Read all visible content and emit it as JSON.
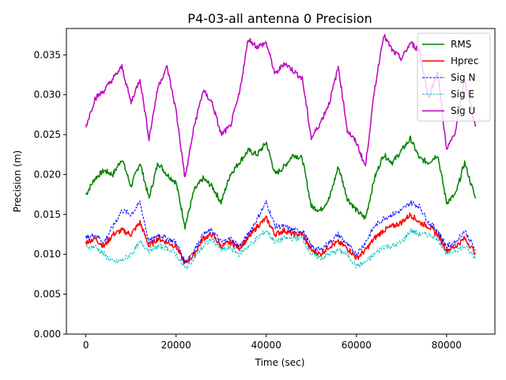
{
  "chart_data": {
    "type": "line",
    "title": "P4-03-all antenna 0 Precision",
    "xlabel": "Time (sec)",
    "ylabel": "Precision (m)",
    "xlim": [
      -4320,
      90720
    ],
    "ylim": [
      0.0,
      0.0383
    ],
    "xticks": [
      0,
      20000,
      40000,
      60000,
      80000
    ],
    "xtick_labels": [
      "0",
      "20000",
      "40000",
      "60000",
      "80000"
    ],
    "yticks": [
      0.0,
      0.005,
      0.01,
      0.015,
      0.02,
      0.025,
      0.03,
      0.035
    ],
    "ytick_labels": [
      "0.000",
      "0.005",
      "0.010",
      "0.015",
      "0.020",
      "0.025",
      "0.030",
      "0.035"
    ],
    "legend_position": "top-right",
    "grid": false,
    "x": [
      0,
      2000,
      4000,
      6000,
      8000,
      10000,
      12000,
      14000,
      16000,
      18000,
      20000,
      22000,
      24000,
      26000,
      28000,
      30000,
      32000,
      34000,
      36000,
      38000,
      40000,
      42000,
      44000,
      46000,
      48000,
      50000,
      52000,
      54000,
      56000,
      58000,
      60000,
      62000,
      64000,
      66000,
      68000,
      70000,
      72000,
      74000,
      76000,
      78000,
      80000,
      82000,
      84000,
      86400
    ],
    "series": [
      {
        "name": "RMS",
        "color": "#008000",
        "style": "solid",
        "width": 1.5,
        "values": [
          0.0175,
          0.0195,
          0.0205,
          0.02,
          0.022,
          0.0185,
          0.0215,
          0.017,
          0.0215,
          0.02,
          0.019,
          0.0135,
          0.018,
          0.0195,
          0.0185,
          0.0165,
          0.02,
          0.0215,
          0.023,
          0.0225,
          0.024,
          0.02,
          0.021,
          0.0225,
          0.022,
          0.016,
          0.0155,
          0.017,
          0.021,
          0.017,
          0.0155,
          0.0145,
          0.0195,
          0.0225,
          0.0215,
          0.023,
          0.0245,
          0.022,
          0.0215,
          0.0225,
          0.0165,
          0.0175,
          0.0215,
          0.017
        ]
      },
      {
        "name": "Hprec",
        "color": "#ff0000",
        "style": "solid",
        "width": 1.5,
        "values": [
          0.0115,
          0.012,
          0.011,
          0.0125,
          0.013,
          0.0125,
          0.014,
          0.011,
          0.012,
          0.0115,
          0.011,
          0.0088,
          0.01,
          0.012,
          0.0125,
          0.011,
          0.0115,
          0.0108,
          0.012,
          0.0135,
          0.0145,
          0.0125,
          0.013,
          0.0125,
          0.0125,
          0.0105,
          0.01,
          0.011,
          0.0115,
          0.0108,
          0.0095,
          0.0105,
          0.012,
          0.013,
          0.0135,
          0.014,
          0.015,
          0.014,
          0.0135,
          0.0125,
          0.0105,
          0.011,
          0.012,
          0.0102
        ]
      },
      {
        "name": "Sig N",
        "color": "#0000ff",
        "style": "dashed",
        "width": 1.0,
        "values": [
          0.012,
          0.0125,
          0.0115,
          0.0135,
          0.0155,
          0.015,
          0.0165,
          0.0115,
          0.0125,
          0.012,
          0.0115,
          0.009,
          0.0105,
          0.0125,
          0.013,
          0.0115,
          0.012,
          0.011,
          0.0125,
          0.0145,
          0.0165,
          0.0135,
          0.0135,
          0.013,
          0.013,
          0.011,
          0.0105,
          0.0115,
          0.0125,
          0.0112,
          0.01,
          0.0115,
          0.0135,
          0.0145,
          0.015,
          0.0155,
          0.0165,
          0.016,
          0.014,
          0.013,
          0.011,
          0.0115,
          0.013,
          0.0105
        ]
      },
      {
        "name": "Sig E",
        "color": "#00bfbf",
        "style": "dashed",
        "width": 1.0,
        "values": [
          0.0108,
          0.011,
          0.01,
          0.009,
          0.0092,
          0.01,
          0.0115,
          0.0105,
          0.011,
          0.0108,
          0.01,
          0.0082,
          0.0095,
          0.011,
          0.012,
          0.0105,
          0.0108,
          0.01,
          0.011,
          0.012,
          0.013,
          0.0115,
          0.012,
          0.012,
          0.012,
          0.01,
          0.0095,
          0.01,
          0.0105,
          0.01,
          0.0085,
          0.009,
          0.01,
          0.011,
          0.011,
          0.0115,
          0.013,
          0.0125,
          0.0125,
          0.012,
          0.01,
          0.0105,
          0.011,
          0.0095
        ]
      },
      {
        "name": "Sig U",
        "color": "#bf00bf",
        "style": "solid",
        "width": 1.5,
        "values": [
          0.026,
          0.0295,
          0.0305,
          0.032,
          0.0335,
          0.029,
          0.032,
          0.0245,
          0.031,
          0.0335,
          0.028,
          0.0195,
          0.026,
          0.0305,
          0.029,
          0.025,
          0.026,
          0.03,
          0.037,
          0.036,
          0.0365,
          0.0325,
          0.034,
          0.033,
          0.032,
          0.0245,
          0.0265,
          0.029,
          0.0335,
          0.0255,
          0.024,
          0.021,
          0.0305,
          0.0375,
          0.0355,
          0.0345,
          0.0365,
          0.0355,
          0.0295,
          0.033,
          0.023,
          0.0255,
          0.032,
          0.026
        ]
      }
    ]
  }
}
